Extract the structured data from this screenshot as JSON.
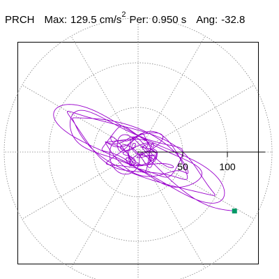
{
  "header": {
    "station": "PRCH",
    "max_label": "Max:",
    "max_value": "129.5 cm/s",
    "max_exp": "2",
    "per_label": "Per:",
    "per_value": "0.950 s",
    "ang_label": "Ang:",
    "ang_value": "-32.8"
  },
  "chart_data": {
    "type": "polar-orbit",
    "title": "PRCH  Max: 129.5 cm/s2  Per: 0.950 s  Ang: -32.8",
    "max_amplitude": 129.5,
    "period_s": 0.95,
    "angle_deg": -32.8,
    "radial_ticks": [
      50,
      100
    ],
    "radial_tick_labels": [
      "50",
      "100"
    ],
    "radial_grid_rings": [
      50,
      100,
      150
    ],
    "spoke_step_deg": 30,
    "trace_color": "#9900cc",
    "grid_color": "#808080",
    "end_marker_color": "#009966",
    "trace_end_point": [
      108,
      -66
    ],
    "axis_extent": 140
  }
}
